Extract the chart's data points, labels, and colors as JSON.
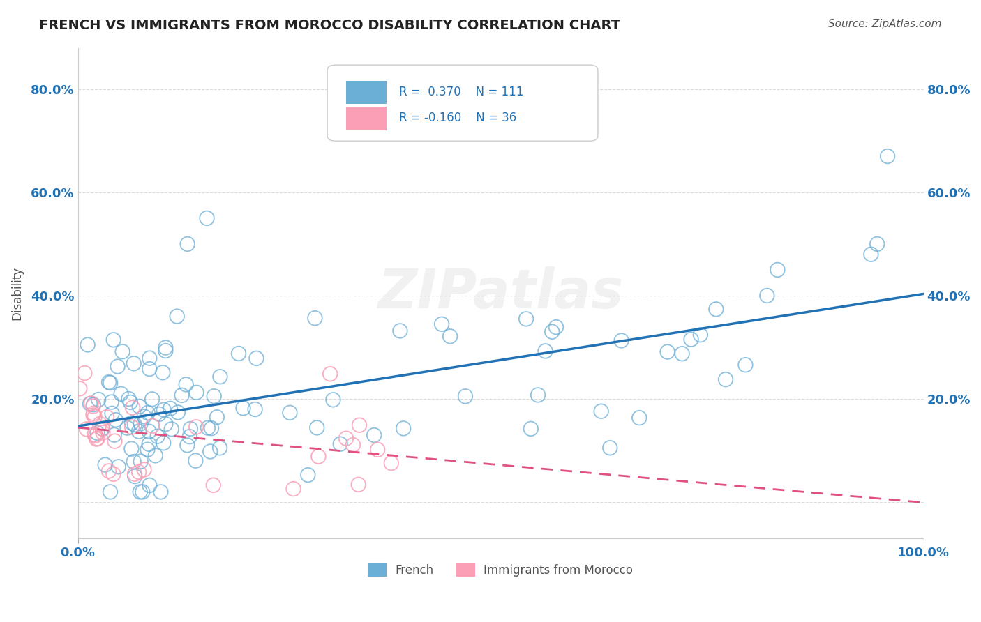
{
  "title": "FRENCH VS IMMIGRANTS FROM MOROCCO DISABILITY CORRELATION CHART",
  "source": "Source: ZipAtlas.com",
  "ylabel": "Disability",
  "xlabel": "",
  "xlim": [
    0,
    1.0
  ],
  "ylim": [
    -0.07,
    0.88
  ],
  "yticks": [
    0.0,
    0.2,
    0.4,
    0.6,
    0.8
  ],
  "ytick_labels": [
    "",
    "20.0%",
    "40.0%",
    "60.0%",
    "80.0%"
  ],
  "xticks": [
    0.0,
    1.0
  ],
  "xtick_labels": [
    "0.0%",
    "100.0%"
  ],
  "french_R": 0.37,
  "french_N": 111,
  "morocco_R": -0.16,
  "morocco_N": 36,
  "french_color": "#6baed6",
  "morocco_color": "#fa9fb5",
  "french_trend_color": "#2171b5",
  "morocco_trend_color": "#e05080",
  "background_color": "#ffffff",
  "watermark": "ZIPatlas",
  "legend_french": "French",
  "legend_morocco": "Immigrants from Morocco",
  "french_seed": 42,
  "morocco_seed": 99
}
